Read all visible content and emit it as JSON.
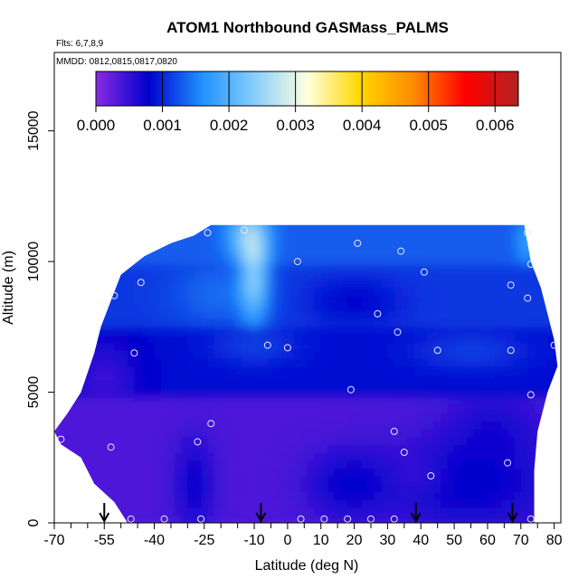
{
  "chart_data": {
    "type": "heatmap",
    "title": "ATOM1 Northbound GASMass_PALMS",
    "subtitle_lines": [
      "Flts: 6,7,8,9",
      "MMDD: 0812,0815,0817,0820"
    ],
    "xlabel": "Latitude (deg N)",
    "ylabel": "Altitude (m)",
    "xlim": [
      -70,
      82
    ],
    "ylim": [
      0,
      18000
    ],
    "x_tick_values": [
      -70,
      -55,
      -40,
      -25,
      -10,
      0,
      10,
      20,
      30,
      40,
      50,
      60,
      70,
      80
    ],
    "x_tick_labels": [
      "-70",
      "-55",
      "-40",
      "-25",
      "-10",
      "0",
      "10",
      "20",
      "30",
      "40",
      "50",
      "60",
      "70",
      "80"
    ],
    "x_minor_ticks": [
      -65,
      -60,
      -50,
      -45,
      -35,
      -30,
      -20,
      -15,
      -5,
      5,
      15,
      25,
      35,
      45,
      55,
      65,
      75
    ],
    "y_tick_values": [
      0,
      5000,
      10000,
      15000
    ],
    "y_tick_labels": [
      "0",
      "5000",
      "10000",
      "15000"
    ],
    "colorbar": {
      "min": 0.0,
      "max": 0.00635,
      "tick_values": [
        0.0,
        0.001,
        0.002,
        0.003,
        0.004,
        0.005,
        0.006
      ],
      "tick_labels": [
        "0.000",
        "0.001",
        "0.002",
        "0.003",
        "0.004",
        "0.005",
        "0.006"
      ],
      "colors": [
        "#8a2be2",
        "#0000cd",
        "#1e90ff",
        "#87cefa",
        "#ffffe0",
        "#ffd700",
        "#ff8c00",
        "#ff0000",
        "#b22222"
      ]
    },
    "profile_arrows_lat": [
      -55,
      -8,
      38.5,
      67.5
    ],
    "sample_points": [
      [
        -24,
        11100
      ],
      [
        -13,
        11200
      ],
      [
        21,
        10700
      ],
      [
        34,
        10400
      ],
      [
        72,
        11100
      ],
      [
        3,
        10000
      ],
      [
        41,
        9600
      ],
      [
        73,
        9900
      ],
      [
        -44,
        9200
      ],
      [
        67,
        9100
      ],
      [
        -52,
        8700
      ],
      [
        72,
        8600
      ],
      [
        27,
        8000
      ],
      [
        33,
        7300
      ],
      [
        -6,
        6800
      ],
      [
        0,
        6700
      ],
      [
        45,
        6600
      ],
      [
        -46,
        6500
      ],
      [
        67,
        6600
      ],
      [
        80,
        6800
      ],
      [
        19,
        5100
      ],
      [
        73,
        4900
      ],
      [
        -23,
        3800
      ],
      [
        32,
        3500
      ],
      [
        -68,
        3200
      ],
      [
        -27,
        3100
      ],
      [
        -53,
        2900
      ],
      [
        35,
        2700
      ],
      [
        43,
        1800
      ],
      [
        66,
        2300
      ],
      [
        -47,
        150
      ],
      [
        -37,
        150
      ],
      [
        -26,
        150
      ],
      [
        4,
        150
      ],
      [
        11,
        150
      ],
      [
        18,
        150
      ],
      [
        25,
        150
      ],
      [
        32,
        150
      ],
      [
        73,
        150
      ]
    ]
  }
}
